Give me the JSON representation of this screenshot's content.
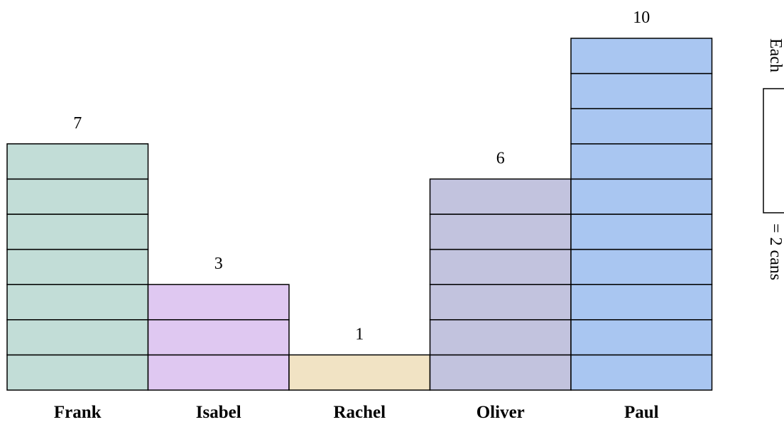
{
  "chart_data": {
    "type": "bar",
    "subtype": "pictograph-stacked-units",
    "categories": [
      "Frank",
      "Isabel",
      "Rachel",
      "Oliver",
      "Paul"
    ],
    "values": [
      7,
      3,
      1,
      6,
      10
    ],
    "value_labels": [
      "7",
      "3",
      "1",
      "6",
      "10"
    ],
    "colors": [
      "#c2ddd7",
      "#dfc8f1",
      "#f1e3c4",
      "#c2c3de",
      "#a9c6f1"
    ],
    "grid": false,
    "legend": {
      "placement": "right",
      "prefix": "Each",
      "suffix": "= 2 cans",
      "unit_value": 2
    }
  }
}
